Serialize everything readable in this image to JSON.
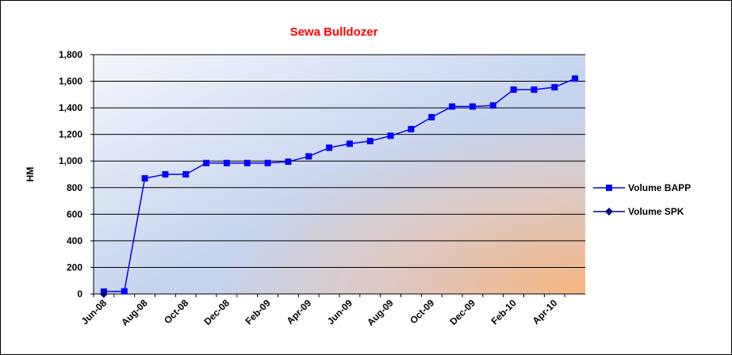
{
  "chart_data": {
    "type": "line",
    "title": "Sewa Bulldozer",
    "y_label": "HM",
    "categories": [
      "Jun-08",
      null,
      "Aug-08",
      null,
      "Oct-08",
      null,
      "Dec-08",
      null,
      "Feb-09",
      null,
      "Apr-09",
      null,
      "Jun-09",
      null,
      "Aug-09",
      null,
      "Oct-09",
      null,
      "Dec-09",
      null,
      "Feb-10",
      null,
      "Apr-10",
      null
    ],
    "series": [
      {
        "name": "Volume BAPP",
        "color": "#0000ff",
        "marker": "square",
        "values": [
          18,
          20,
          870,
          900,
          900,
          985,
          985,
          985,
          985,
          995,
          1035,
          1100,
          1130,
          1150,
          1190,
          1240,
          1330,
          1410,
          1410,
          1418,
          1537,
          1537,
          1555,
          1620
        ]
      },
      {
        "name": "Volume SPK",
        "color": "#000080",
        "marker": "diamond",
        "values": [
          0,
          null,
          null,
          null,
          null,
          null,
          null,
          null,
          null,
          null,
          null,
          null,
          null,
          null,
          null,
          null,
          null,
          null,
          null,
          null,
          null,
          null,
          null,
          null
        ]
      }
    ],
    "ylim": [
      0,
      1800
    ],
    "yticks": [
      0,
      200,
      400,
      600,
      800,
      {
        "value": 1000,
        "label": "1,000"
      },
      {
        "value": 1200,
        "label": "1,200"
      },
      {
        "value": 1400,
        "label": "1,400"
      },
      {
        "value": 1600,
        "label": "1,600"
      },
      {
        "value": 1800,
        "label": "1,800"
      }
    ],
    "grid": true,
    "legend": "right"
  }
}
